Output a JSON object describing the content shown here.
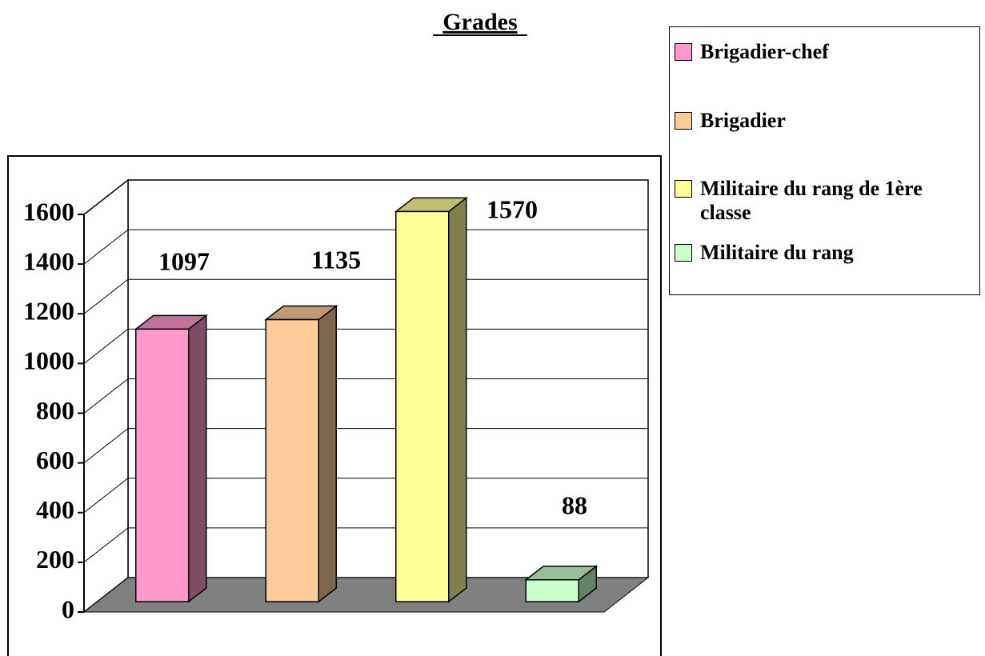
{
  "chart_data": {
    "type": "bar3d",
    "title": "Grades",
    "series": [
      {
        "name": "Brigadier-chef",
        "color": "#ff99cc",
        "values": [
          1097
        ]
      },
      {
        "name": "Brigadier",
        "color": "#ffcc99",
        "values": [
          1135
        ]
      },
      {
        "name": "Militaire du rang de 1ère classe",
        "color": "#ffff99",
        "values": [
          1570
        ]
      },
      {
        "name": "Militaire du rang",
        "color": "#ccffcc",
        "values": [
          88
        ]
      }
    ],
    "ylim": [
      0,
      1600
    ],
    "yticks": [
      0,
      200,
      400,
      600,
      800,
      1000,
      1200,
      1400,
      1600
    ],
    "grid": true
  }
}
